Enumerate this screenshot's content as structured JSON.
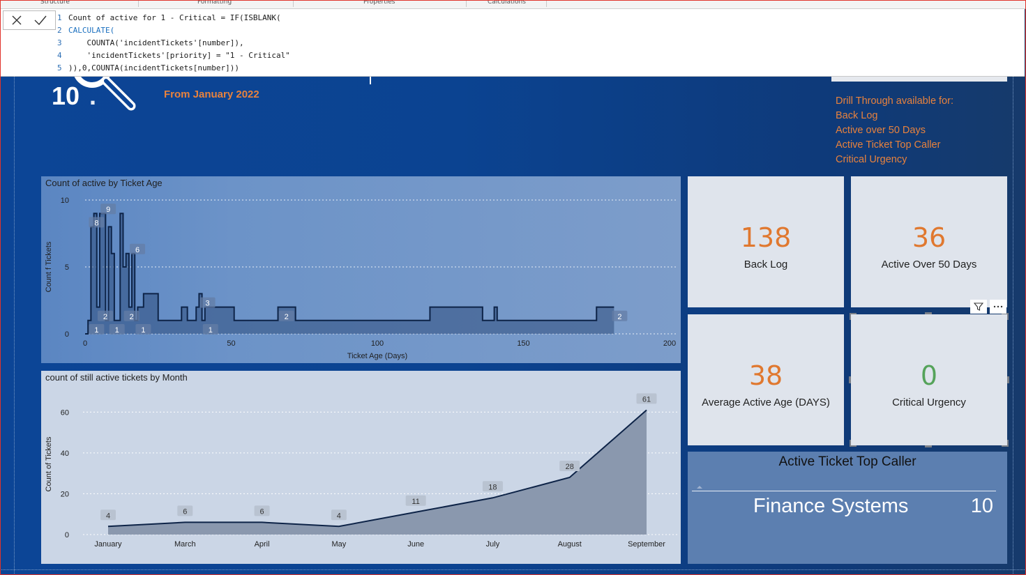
{
  "ribbon": {
    "sections": [
      "Structure",
      "Formatting",
      "Properties",
      "Calculations"
    ]
  },
  "formula_bar": {
    "cancel_icon": "close-icon",
    "commit_icon": "checkmark-icon",
    "lines": [
      {
        "num": "1",
        "text": "Count of active for 1 - Critical = IF(ISBLANK("
      },
      {
        "num": "2",
        "text": "CALCULATE("
      },
      {
        "num": "3",
        "text": "    COUNTA('incidentTickets'[number]),"
      },
      {
        "num": "4",
        "text": "    'incidentTickets'[priority] = \"1 - Critical\""
      },
      {
        "num": "5",
        "text": ")),0,COUNTA(incidentTickets[number]))"
      }
    ]
  },
  "header": {
    "subtitle": "From January 2022"
  },
  "drill_through": {
    "heading": "Drill Through available for:",
    "items": [
      "Back Log",
      "Active over 50 Days",
      "Active Ticket Top Caller",
      "Critical Urgency"
    ]
  },
  "cards": [
    {
      "value": "138",
      "label": "Back Log"
    },
    {
      "value": "36",
      "label": "Active Over 50 Days"
    },
    {
      "value": "38",
      "label": "Average Active Age (DAYS)"
    },
    {
      "value": "0",
      "label": "Critical Urgency"
    }
  ],
  "colors": {
    "accent_orange": "#e0782f",
    "zero_green": "#55a35a",
    "line_navy": "#0d2347"
  },
  "top_caller": {
    "title": "Active Ticket Top Caller",
    "name": "Finance Systems",
    "value": "10"
  },
  "chart_data": [
    {
      "type": "area",
      "title": "Count of active by Ticket Age",
      "xlabel": "Ticket Age (Days)",
      "ylabel": "Count f Tickets",
      "xlim": [
        0,
        200
      ],
      "ylim": [
        0,
        10
      ],
      "xticks": [
        0,
        50,
        100,
        150,
        200
      ],
      "yticks": [
        0,
        5,
        10
      ],
      "grid": true,
      "x": [
        0,
        1,
        2,
        3,
        4,
        5,
        6,
        7,
        8,
        9,
        10,
        11,
        12,
        13,
        14,
        15,
        16,
        17,
        18,
        20,
        24,
        25,
        30,
        31,
        33,
        34,
        35,
        38,
        39,
        40,
        41,
        42,
        50,
        51,
        60,
        66,
        72,
        75,
        100,
        118,
        119,
        125,
        130,
        135,
        136,
        138,
        140,
        141,
        160,
        175,
        176,
        181
      ],
      "y": [
        0,
        1,
        8,
        9,
        2,
        9,
        9,
        1,
        8,
        6,
        1,
        1,
        9,
        5,
        6,
        2,
        6,
        1,
        2,
        3,
        3,
        1,
        1,
        1,
        2,
        2,
        1,
        2,
        3,
        1,
        2,
        2,
        2,
        1,
        1,
        2,
        1,
        1,
        1,
        2,
        2,
        2,
        2,
        2,
        1,
        1,
        2,
        1,
        1,
        2,
        2,
        2
      ],
      "data_labels": [
        {
          "x": 2,
          "y": 8,
          "label": "8"
        },
        {
          "x": 6,
          "y": 9,
          "label": "9"
        },
        {
          "x": 16,
          "y": 6,
          "label": "6"
        },
        {
          "x": 5,
          "y": 1,
          "label": "2"
        },
        {
          "x": 14,
          "y": 1,
          "label": "2"
        },
        {
          "x": 2,
          "y": 0,
          "label": "1"
        },
        {
          "x": 9,
          "y": 0,
          "label": "1"
        },
        {
          "x": 18,
          "y": 0,
          "label": "1"
        },
        {
          "x": 40,
          "y": 2,
          "label": "3"
        },
        {
          "x": 41,
          "y": 0,
          "label": "1"
        },
        {
          "x": 67,
          "y": 1,
          "label": "2"
        },
        {
          "x": 181,
          "y": 1,
          "label": "2"
        }
      ]
    },
    {
      "type": "area",
      "title": "count of still active tickets by Month",
      "xlabel": "",
      "ylabel": "Count of Tickets",
      "ylim": [
        0,
        70
      ],
      "yticks": [
        0,
        20,
        40,
        60
      ],
      "grid": true,
      "categories": [
        "January",
        "March",
        "April",
        "May",
        "June",
        "July",
        "August",
        "September"
      ],
      "values": [
        4,
        6,
        6,
        4,
        11,
        18,
        28,
        61
      ]
    }
  ]
}
